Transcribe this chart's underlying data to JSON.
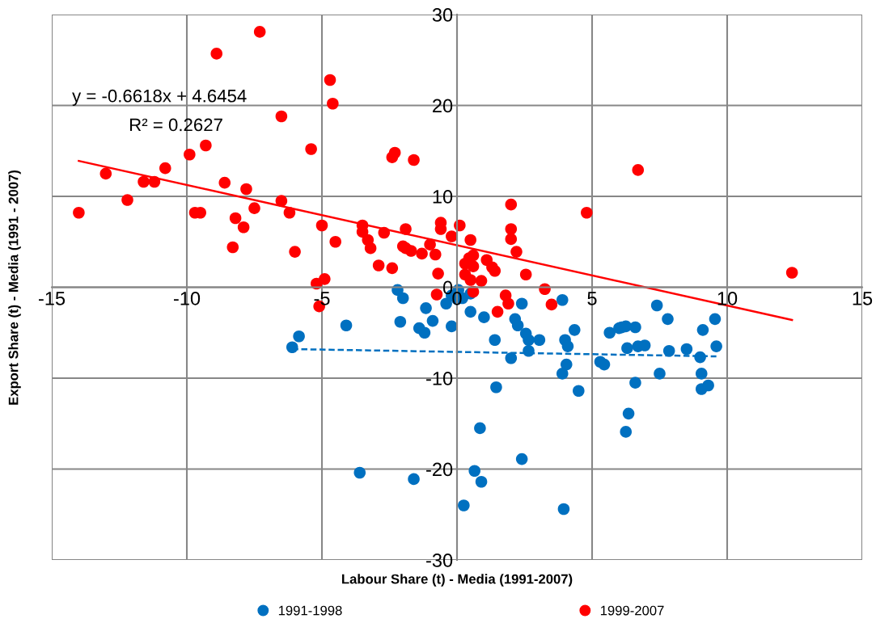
{
  "chart_data": {
    "type": "scatter",
    "xlabel": "Labour Share (t) - Media (1991-2007)",
    "ylabel": "Export Share (t) - Media (1991 - 2007)",
    "xlim": [
      -15,
      15
    ],
    "xticks": [
      -15,
      -10,
      -5,
      0,
      5,
      10,
      15
    ],
    "ylim": [
      -30,
      30
    ],
    "yticks": [
      -30,
      -20,
      -10,
      0,
      10,
      20,
      30
    ],
    "grid": true,
    "legend": "bottom",
    "marker": "circle",
    "annotations": [
      "y = -0.6618x + 4.6454",
      "R² = 0.2627"
    ],
    "series": [
      {
        "name": "1991-1998",
        "color": "#0070c0",
        "x": [
          -2.2,
          -2.0,
          -1.15,
          -2.1,
          -1.4,
          -1.2,
          -0.9,
          -0.2,
          -0.4,
          -0.2,
          0.05,
          0.0,
          0.2,
          0.5,
          1.0,
          1.4,
          0.5,
          2.4,
          2.15,
          2.25,
          2.55,
          2.65,
          3.05,
          2.65,
          3.9,
          4.35,
          4.0,
          4.1,
          -4.1,
          -5.85,
          -6.1,
          2.0,
          4.05,
          3.9,
          4.5,
          1.45,
          0.85,
          2.4,
          0.65,
          0.9,
          0.25,
          3.95,
          5.3,
          5.45,
          5.65,
          6.0,
          6.1,
          6.25,
          6.6,
          6.3,
          6.7,
          6.95,
          7.4,
          7.8,
          7.85,
          8.5,
          9.0,
          9.1,
          9.55,
          9.6,
          9.05,
          9.05,
          9.3,
          7.5,
          6.6,
          6.35,
          6.25,
          -3.6,
          -1.6
        ],
        "values": [
          -0.3,
          -1.2,
          -2.3,
          -3.8,
          -4.5,
          -5.0,
          -3.7,
          -4.3,
          -1.8,
          -0.9,
          -0.3,
          -1.3,
          -1.2,
          -2.7,
          -3.3,
          -5.8,
          -0.7,
          -1.8,
          -3.5,
          -4.2,
          -5.1,
          -5.8,
          -5.8,
          -7.0,
          -1.4,
          -4.7,
          -5.8,
          -6.5,
          -4.2,
          -5.4,
          -6.6,
          -7.8,
          -8.5,
          -9.5,
          -11.4,
          -11.0,
          -15.5,
          -18.9,
          -20.2,
          -21.4,
          -24.0,
          -24.4,
          -8.2,
          -8.5,
          -5.0,
          -4.5,
          -4.4,
          -4.3,
          -4.4,
          -6.7,
          -6.5,
          -6.4,
          -2.0,
          -3.5,
          -7.0,
          -6.8,
          -7.7,
          -4.7,
          -3.5,
          -6.5,
          -9.5,
          -11.2,
          -10.8,
          -9.5,
          -10.5,
          -13.9,
          -15.9,
          -20.4,
          -21.1
        ]
      },
      {
        "name": "1999-2007",
        "color": "#ff0000",
        "x": [
          -14.0,
          -13.0,
          -12.2,
          -11.6,
          -11.2,
          -10.8,
          -9.9,
          -9.7,
          -9.5,
          -9.3,
          -8.9,
          -8.6,
          -8.2,
          -8.3,
          -7.9,
          -7.8,
          -7.5,
          -7.3,
          -6.5,
          -6.5,
          -6.2,
          -6.0,
          -5.4,
          -5.2,
          -5.1,
          -5.0,
          -4.9,
          -4.7,
          -4.6,
          -4.5,
          -3.5,
          -3.5,
          -3.3,
          -3.2,
          -2.9,
          -2.7,
          -2.4,
          -2.3,
          -2.4,
          -2.0,
          -1.9,
          -1.9,
          -1.7,
          -1.6,
          -1.3,
          -1.0,
          -0.8,
          -0.7,
          -0.75,
          -0.6,
          -0.6,
          -0.2,
          0.1,
          0.3,
          0.45,
          0.6,
          0.5,
          0.3,
          0.5,
          0.6,
          0.6,
          0.9,
          1.1,
          1.3,
          1.4,
          2.55,
          2.0,
          2.0,
          2.0,
          2.2,
          3.25,
          3.5,
          1.8,
          1.9,
          1.5,
          4.8,
          6.7,
          12.4
        ],
        "values": [
          8.2,
          12.5,
          9.6,
          11.6,
          11.6,
          13.1,
          14.6,
          8.2,
          8.2,
          15.6,
          25.7,
          11.5,
          7.6,
          4.4,
          6.6,
          10.8,
          8.7,
          28.1,
          18.8,
          9.5,
          8.2,
          3.9,
          15.2,
          0.4,
          -2.1,
          6.8,
          0.9,
          22.8,
          20.2,
          5.0,
          6.8,
          6.1,
          5.2,
          4.3,
          2.4,
          6.0,
          2.1,
          14.8,
          14.3,
          4.5,
          4.3,
          6.4,
          4.0,
          14.0,
          3.7,
          4.7,
          3.6,
          1.5,
          -0.8,
          7.1,
          6.4,
          5.6,
          6.8,
          2.6,
          3.2,
          3.5,
          5.2,
          1.4,
          0.8,
          2.3,
          -0.5,
          0.7,
          3.0,
          2.2,
          1.8,
          1.4,
          9.1,
          6.4,
          5.3,
          3.9,
          -0.2,
          -1.9,
          -0.9,
          -1.8,
          -2.7,
          8.2,
          12.9,
          1.6
        ]
      },
      {
        "type": "line",
        "color": "#0070c0",
        "line_style": "dashed",
        "marker": "none",
        "x": [
          -6.1,
          9.6
        ],
        "values": [
          -6.8,
          -7.6
        ]
      },
      {
        "type": "line",
        "color": "#ff0000",
        "line_style": "solid",
        "marker": "none",
        "x": [
          -14.0,
          12.4
        ],
        "values": [
          13.9,
          -3.6
        ]
      }
    ]
  }
}
